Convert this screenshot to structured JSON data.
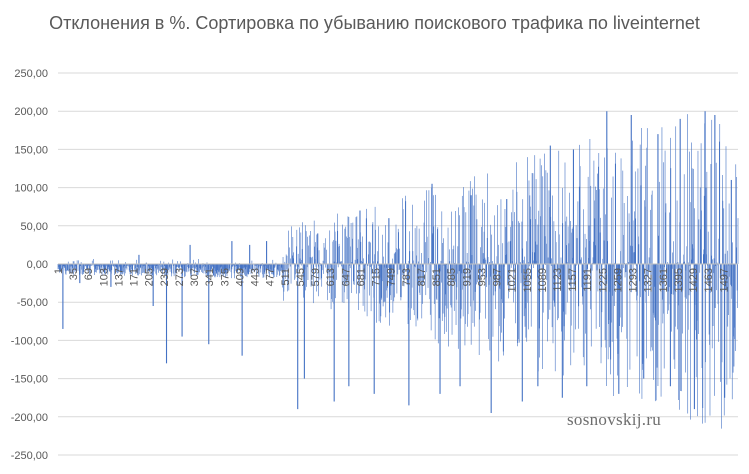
{
  "chart_data": {
    "type": "bar",
    "title": "Отклонения в %. Сортировка по убыванию поискового трафика по liveinternet",
    "xlabel": "",
    "ylabel": "",
    "ylim": [
      -250,
      250
    ],
    "y_ticks": [
      250,
      200,
      150,
      100,
      50,
      0,
      -50,
      -100,
      -150,
      -200,
      -250
    ],
    "y_tick_labels": [
      "250,00",
      "200,00",
      "150,00",
      "100,00",
      "50,00",
      "0,00",
      "-50,00",
      "-100,00",
      "-150,00",
      "-200,00",
      "-250,00"
    ],
    "x_range": [
      1,
      1530
    ],
    "x_ticks": [
      1,
      35,
      69,
      103,
      137,
      171,
      205,
      239,
      273,
      307,
      341,
      375,
      409,
      443,
      477,
      511,
      545,
      579,
      613,
      647,
      681,
      715,
      749,
      783,
      817,
      851,
      885,
      919,
      953,
      987,
      1021,
      1055,
      1089,
      1123,
      1157,
      1191,
      1225,
      1259,
      1293,
      1327,
      1361,
      1395,
      1429,
      1463,
      1497
    ],
    "grid": true,
    "legend": "none",
    "bar_color": "#4472c4",
    "spikes": [
      {
        "x": 12,
        "value": -85
      },
      {
        "x": 50,
        "value": -25
      },
      {
        "x": 120,
        "value": -30
      },
      {
        "x": 183,
        "value": 12
      },
      {
        "x": 215,
        "value": -55
      },
      {
        "x": 245,
        "value": -130
      },
      {
        "x": 280,
        "value": -95
      },
      {
        "x": 298,
        "value": 25
      },
      {
        "x": 340,
        "value": -105
      },
      {
        "x": 392,
        "value": 30
      },
      {
        "x": 415,
        "value": -120
      },
      {
        "x": 432,
        "value": 25
      },
      {
        "x": 470,
        "value": 30
      },
      {
        "x": 540,
        "value": -190
      },
      {
        "x": 555,
        "value": -150
      },
      {
        "x": 585,
        "value": 40
      },
      {
        "x": 622,
        "value": -180
      },
      {
        "x": 655,
        "value": -160
      },
      {
        "x": 680,
        "value": 70
      },
      {
        "x": 712,
        "value": -170
      },
      {
        "x": 745,
        "value": 60
      },
      {
        "x": 790,
        "value": -185
      },
      {
        "x": 842,
        "value": 105
      },
      {
        "x": 860,
        "value": -170
      },
      {
        "x": 905,
        "value": -160
      },
      {
        "x": 930,
        "value": 90
      },
      {
        "x": 975,
        "value": -195
      },
      {
        "x": 1010,
        "value": 85
      },
      {
        "x": 1045,
        "value": -180
      },
      {
        "x": 1080,
        "value": -160
      },
      {
        "x": 1108,
        "value": 155
      },
      {
        "x": 1135,
        "value": -175
      },
      {
        "x": 1160,
        "value": 150
      },
      {
        "x": 1190,
        "value": -160
      },
      {
        "x": 1235,
        "value": 200
      },
      {
        "x": 1262,
        "value": -170
      },
      {
        "x": 1290,
        "value": 195
      },
      {
        "x": 1318,
        "value": -150
      },
      {
        "x": 1350,
        "value": 170
      },
      {
        "x": 1378,
        "value": -160
      },
      {
        "x": 1400,
        "value": 190
      },
      {
        "x": 1432,
        "value": -190
      },
      {
        "x": 1456,
        "value": 200
      },
      {
        "x": 1478,
        "value": 195
      },
      {
        "x": 1500,
        "value": -175
      },
      {
        "x": 1515,
        "value": 110
      }
    ]
  },
  "watermark": "sosnovskij.ru"
}
